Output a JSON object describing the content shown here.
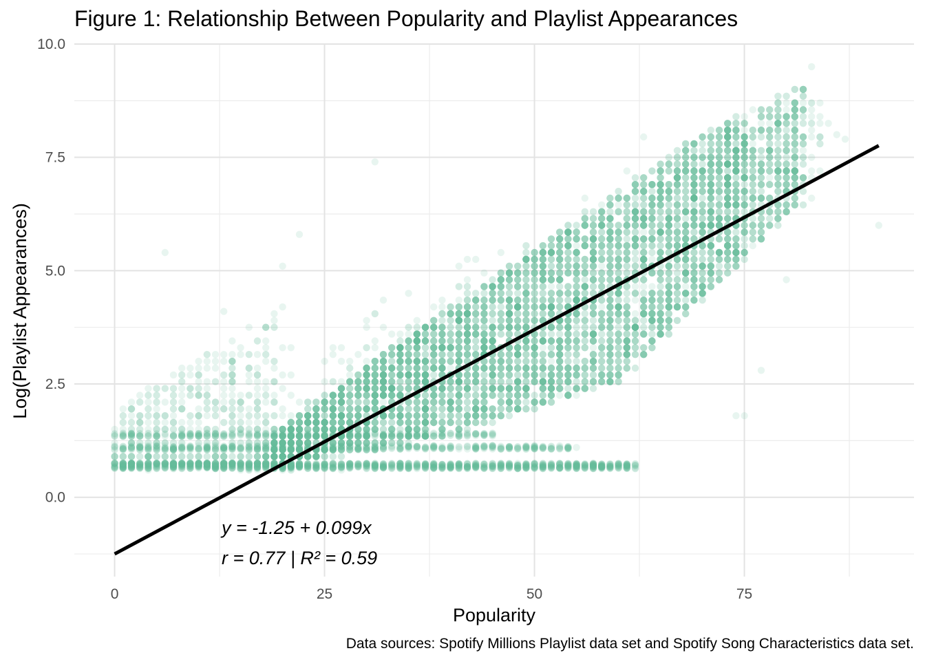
{
  "chart_data": {
    "type": "scatter",
    "title": "Figure 1: Relationship Between Popularity and Playlist Appearances",
    "xlabel": "Popularity",
    "ylabel": "Log(Playlist Appearances)",
    "caption": "Data sources: Spotify Millions Playlist data set and Spotify Song Characteristics data set.",
    "xlim": [
      -4.8,
      95.2
    ],
    "ylim": [
      -1.75,
      10.0
    ],
    "x_ticks": [
      0,
      25,
      50,
      75
    ],
    "x_tick_labels": [
      "0",
      "25",
      "50",
      "75"
    ],
    "y_ticks": [
      0.0,
      2.5,
      5.0,
      7.5,
      10.0
    ],
    "y_tick_labels": [
      "0.0",
      "2.5",
      "5.0",
      "7.5",
      "10.0"
    ],
    "grid": true,
    "point_color": "#66BB99",
    "point_opacity": 0.15,
    "line_color": "#000000",
    "regression": {
      "intercept": -1.25,
      "slope": 0.099,
      "x_range": [
        0,
        91
      ]
    },
    "annotations": [
      "y = -1.25 + 0.099x",
      "r = 0.77 | R² = 0.59"
    ],
    "point_cloud_summary": {
      "baseline_y": 0.69,
      "baseline_x_range": [
        0,
        62
      ],
      "bulk_lower_edge": [
        [
          20,
          0.7
        ],
        [
          40,
          1.2
        ],
        [
          55,
          1.6
        ],
        [
          65,
          2.5
        ],
        [
          70,
          3.5
        ]
      ],
      "bulk_upper_edge": [
        [
          20,
          1.5
        ],
        [
          30,
          2.9
        ],
        [
          40,
          4.2
        ],
        [
          50,
          5.6
        ],
        [
          60,
          6.7
        ],
        [
          70,
          8.0
        ],
        [
          80,
          9.0
        ]
      ]
    }
  }
}
